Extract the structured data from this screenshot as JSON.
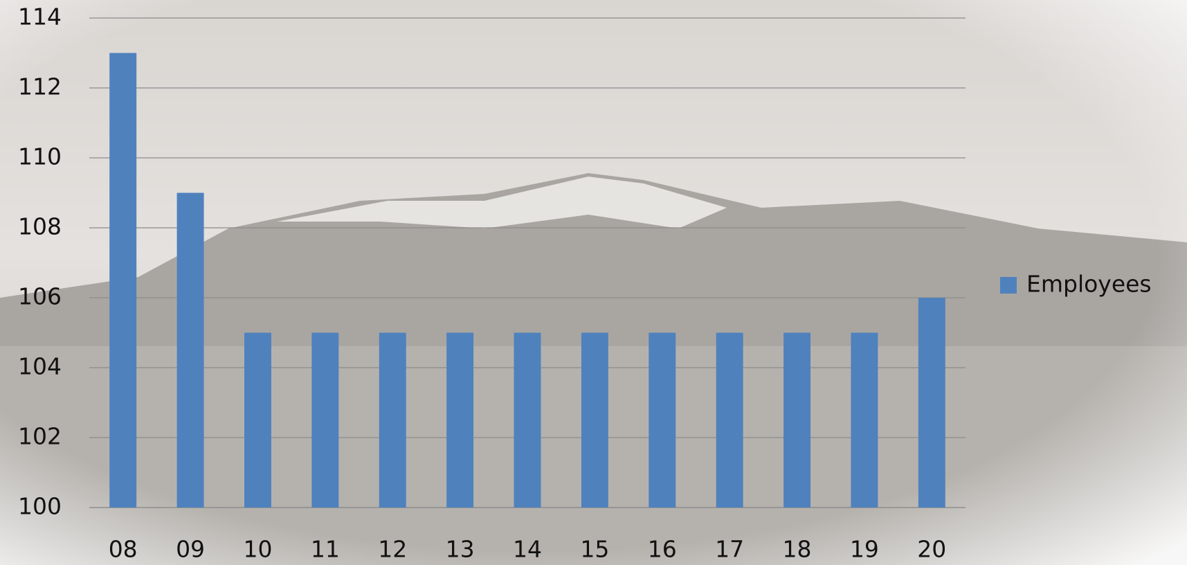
{
  "chart_data": {
    "type": "bar",
    "categories": [
      "08",
      "09",
      "10",
      "11",
      "12",
      "13",
      "14",
      "15",
      "16",
      "17",
      "18",
      "19",
      "20"
    ],
    "series": [
      {
        "name": "Employees",
        "color": "#4f81bd",
        "values": [
          113,
          109,
          105,
          105,
          105,
          105,
          105,
          105,
          105,
          105,
          105,
          105,
          106
        ]
      }
    ],
    "ylim": [
      100,
      114
    ],
    "yticks": [
      100,
      102,
      104,
      106,
      108,
      110,
      112,
      114
    ],
    "grid": true,
    "legend": "right"
  }
}
